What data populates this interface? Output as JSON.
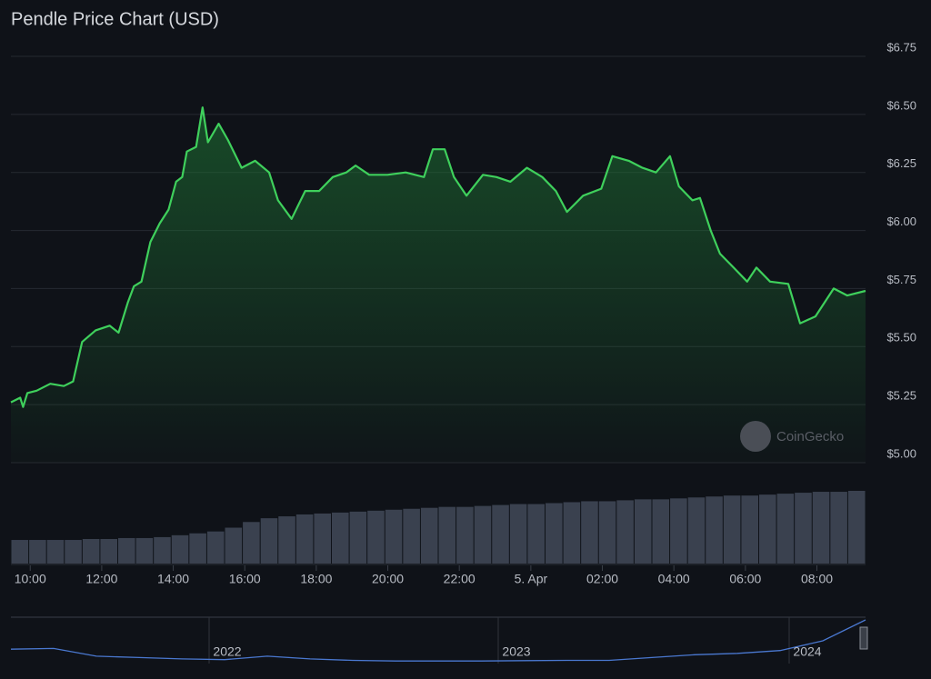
{
  "chart_data": {
    "type": "line",
    "title": "Pendle Price Chart (USD)",
    "watermark": "CoinGecko",
    "x": [
      9.46,
      9.72,
      9.8,
      9.92,
      10.18,
      10.56,
      10.94,
      11.2,
      11.45,
      11.83,
      12.22,
      12.47,
      12.73,
      12.9,
      13.11,
      13.36,
      13.62,
      13.87,
      14.08,
      14.25,
      14.38,
      14.64,
      14.82,
      14.97,
      15.27,
      15.53,
      15.91,
      16.29,
      16.68,
      16.93,
      17.31,
      17.69,
      18.08,
      18.46,
      18.84,
      19.1,
      19.48,
      19.99,
      20.5,
      21.01,
      21.26,
      21.59,
      21.85,
      22.2,
      22.66,
      23.04,
      23.43,
      23.89,
      24.32,
      24.7,
      25.01,
      25.46,
      25.97,
      26.28,
      26.74,
      27.12,
      27.5,
      27.89,
      28.14,
      28.52,
      28.73,
      29.03,
      29.29,
      29.67,
      30.05,
      30.31,
      30.69,
      31.2,
      31.53,
      31.96,
      32.47,
      32.85,
      33.36
    ],
    "series": [
      {
        "name": "Price",
        "color": "#3fd05c",
        "values": [
          5.26,
          5.28,
          5.24,
          5.3,
          5.31,
          5.34,
          5.33,
          5.35,
          5.52,
          5.57,
          5.59,
          5.56,
          5.69,
          5.76,
          5.78,
          5.95,
          6.03,
          6.09,
          6.21,
          6.23,
          6.34,
          6.36,
          6.53,
          6.38,
          6.46,
          6.39,
          6.27,
          6.3,
          6.25,
          6.13,
          6.05,
          6.17,
          6.17,
          6.23,
          6.25,
          6.28,
          6.24,
          6.24,
          6.25,
          6.23,
          6.35,
          6.35,
          6.23,
          6.15,
          6.24,
          6.23,
          6.21,
          6.27,
          6.23,
          6.17,
          6.08,
          6.15,
          6.18,
          6.32,
          6.3,
          6.27,
          6.25,
          6.32,
          6.19,
          6.13,
          6.14,
          6.0,
          5.9,
          5.84,
          5.78,
          5.84,
          5.78,
          5.77,
          5.6,
          5.63,
          5.75,
          5.72,
          5.74
        ]
      }
    ],
    "volume": {
      "color": "#3a414f",
      "values": [
        25,
        25,
        25,
        25,
        26,
        26,
        27,
        27,
        28,
        30,
        32,
        34,
        38,
        44,
        48,
        50,
        52,
        53,
        54,
        55,
        56,
        57,
        58,
        59,
        60,
        60,
        61,
        62,
        63,
        63,
        64,
        65,
        66,
        66,
        67,
        68,
        68,
        69,
        70,
        71,
        72,
        72,
        73,
        74,
        75,
        76,
        76,
        77
      ]
    },
    "navigator": {
      "color": "#4a78d0",
      "labels": [
        "2022",
        "2023",
        "2024"
      ],
      "values": [
        0.9,
        0.95,
        0.4,
        0.3,
        0.2,
        0.15,
        0.4,
        0.2,
        0.1,
        0.05,
        0.05,
        0.05,
        0.08,
        0.1,
        0.1,
        0.3,
        0.5,
        0.6,
        0.8,
        1.5,
        3.0
      ]
    },
    "xlim": [
      9.46,
      33.36
    ],
    "xticks": [
      {
        "value": 10,
        "label": "10:00"
      },
      {
        "value": 12,
        "label": "12:00"
      },
      {
        "value": 14,
        "label": "14:00"
      },
      {
        "value": 16,
        "label": "16:00"
      },
      {
        "value": 18,
        "label": "18:00"
      },
      {
        "value": 20,
        "label": "20:00"
      },
      {
        "value": 22,
        "label": "22:00"
      },
      {
        "value": 24,
        "label": "5. Apr"
      },
      {
        "value": 26,
        "label": "02:00"
      },
      {
        "value": 28,
        "label": "04:00"
      },
      {
        "value": 30,
        "label": "06:00"
      },
      {
        "value": 32,
        "label": "08:00"
      }
    ],
    "ylim": [
      5.0,
      6.75
    ],
    "yticks": [
      {
        "value": 5.0,
        "label": "$5.00"
      },
      {
        "value": 5.25,
        "label": "$5.25"
      },
      {
        "value": 5.5,
        "label": "$5.50"
      },
      {
        "value": 5.75,
        "label": "$5.75"
      },
      {
        "value": 6.0,
        "label": "$6.00"
      },
      {
        "value": 6.25,
        "label": "$6.25"
      },
      {
        "value": 6.5,
        "label": "$6.50"
      },
      {
        "value": 6.75,
        "label": "$6.75"
      }
    ],
    "grid": true
  }
}
